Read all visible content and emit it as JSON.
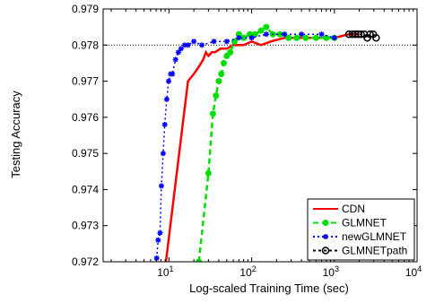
{
  "chart_data": {
    "type": "line",
    "xlabel": "Log-scaled Training Time (sec)",
    "ylabel": "Testing Accuracy",
    "xscale": "log",
    "xlim": [
      1.6,
      10000
    ],
    "ylim": [
      0.972,
      0.979
    ],
    "reference_line_y": 0.978,
    "legend_position": "bottom-right",
    "x_ticks": [
      {
        "value": 10,
        "label": "10",
        "sup": "1"
      },
      {
        "value": 100,
        "label": "10",
        "sup": "2"
      },
      {
        "value": 1000,
        "label": "10",
        "sup": "3"
      },
      {
        "value": 10000,
        "label": "10",
        "sup": "4"
      }
    ],
    "y_ticks": [
      {
        "value": 0.972,
        "label": "0.972"
      },
      {
        "value": 0.973,
        "label": "0.973"
      },
      {
        "value": 0.974,
        "label": "0.974"
      },
      {
        "value": 0.975,
        "label": "0.975"
      },
      {
        "value": 0.976,
        "label": "0.976"
      },
      {
        "value": 0.977,
        "label": "0.977"
      },
      {
        "value": 0.978,
        "label": "0.978"
      },
      {
        "value": 0.979,
        "label": "0.979"
      }
    ],
    "series": [
      {
        "name": "CDN",
        "color": "#ff0000",
        "dash": "",
        "marker": "none",
        "x": [
          9.2,
          17,
          20,
          23,
          26,
          28,
          30,
          33,
          36,
          42,
          50,
          60,
          80,
          100,
          130,
          170,
          250,
          400,
          700,
          1000,
          1500,
          2000
        ],
        "y": [
          0.972,
          0.977,
          0.9772,
          0.9774,
          0.9776,
          0.9778,
          0.9777,
          0.9778,
          0.9778,
          0.9779,
          0.9779,
          0.978,
          0.978,
          0.9781,
          0.978,
          0.9781,
          0.9782,
          0.9782,
          0.9782,
          0.9782,
          0.9783,
          0.9783
        ]
      },
      {
        "name": "GLMNET",
        "color": "#00dd00",
        "dash": "6,4",
        "marker": "circle",
        "x": [
          23,
          30,
          34,
          37,
          40,
          43,
          46,
          50,
          55,
          62,
          70,
          80,
          95,
          110,
          130,
          150,
          180,
          220,
          280,
          350,
          450,
          600,
          800,
          1000
        ],
        "y": [
          0.972,
          0.97445,
          0.9761,
          0.9766,
          0.977,
          0.9772,
          0.9775,
          0.9777,
          0.9778,
          0.9781,
          0.9783,
          0.9782,
          0.9783,
          0.9783,
          0.9784,
          0.9785,
          0.9783,
          0.9783,
          0.9782,
          0.9782,
          0.9782,
          0.9782,
          0.9782,
          0.9782
        ]
      },
      {
        "name": "newGLMNET",
        "color": "#0000ff",
        "dash": "2,3",
        "marker": "star",
        "x": [
          7.1,
          7.4,
          7.8,
          8.1,
          8.5,
          8.9,
          9.4,
          9.9,
          10.5,
          11,
          12,
          13,
          14,
          15.5,
          17,
          20,
          25,
          35,
          50,
          70,
          100,
          150,
          250,
          400,
          700,
          1000
        ],
        "y": [
          0.9721,
          0.9726,
          0.9728,
          0.9741,
          0.975,
          0.9758,
          0.9765,
          0.977,
          0.9772,
          0.9772,
          0.9776,
          0.9778,
          0.9779,
          0.978,
          0.978,
          0.9781,
          0.978,
          0.9781,
          0.9781,
          0.9782,
          0.9782,
          0.9783,
          0.9783,
          0.9783,
          0.9783,
          0.9782
        ]
      },
      {
        "name": "GLMNETpath",
        "color": "#000000",
        "dash": "3,3",
        "marker": "circle-open",
        "x": [
          1500,
          1650,
          1800,
          1950,
          2100,
          2300,
          2500,
          2700,
          2950,
          3200
        ],
        "y": [
          0.9783,
          0.9783,
          0.9783,
          0.9783,
          0.9783,
          0.9783,
          0.9782,
          0.9783,
          0.9783,
          0.9782
        ]
      }
    ]
  }
}
